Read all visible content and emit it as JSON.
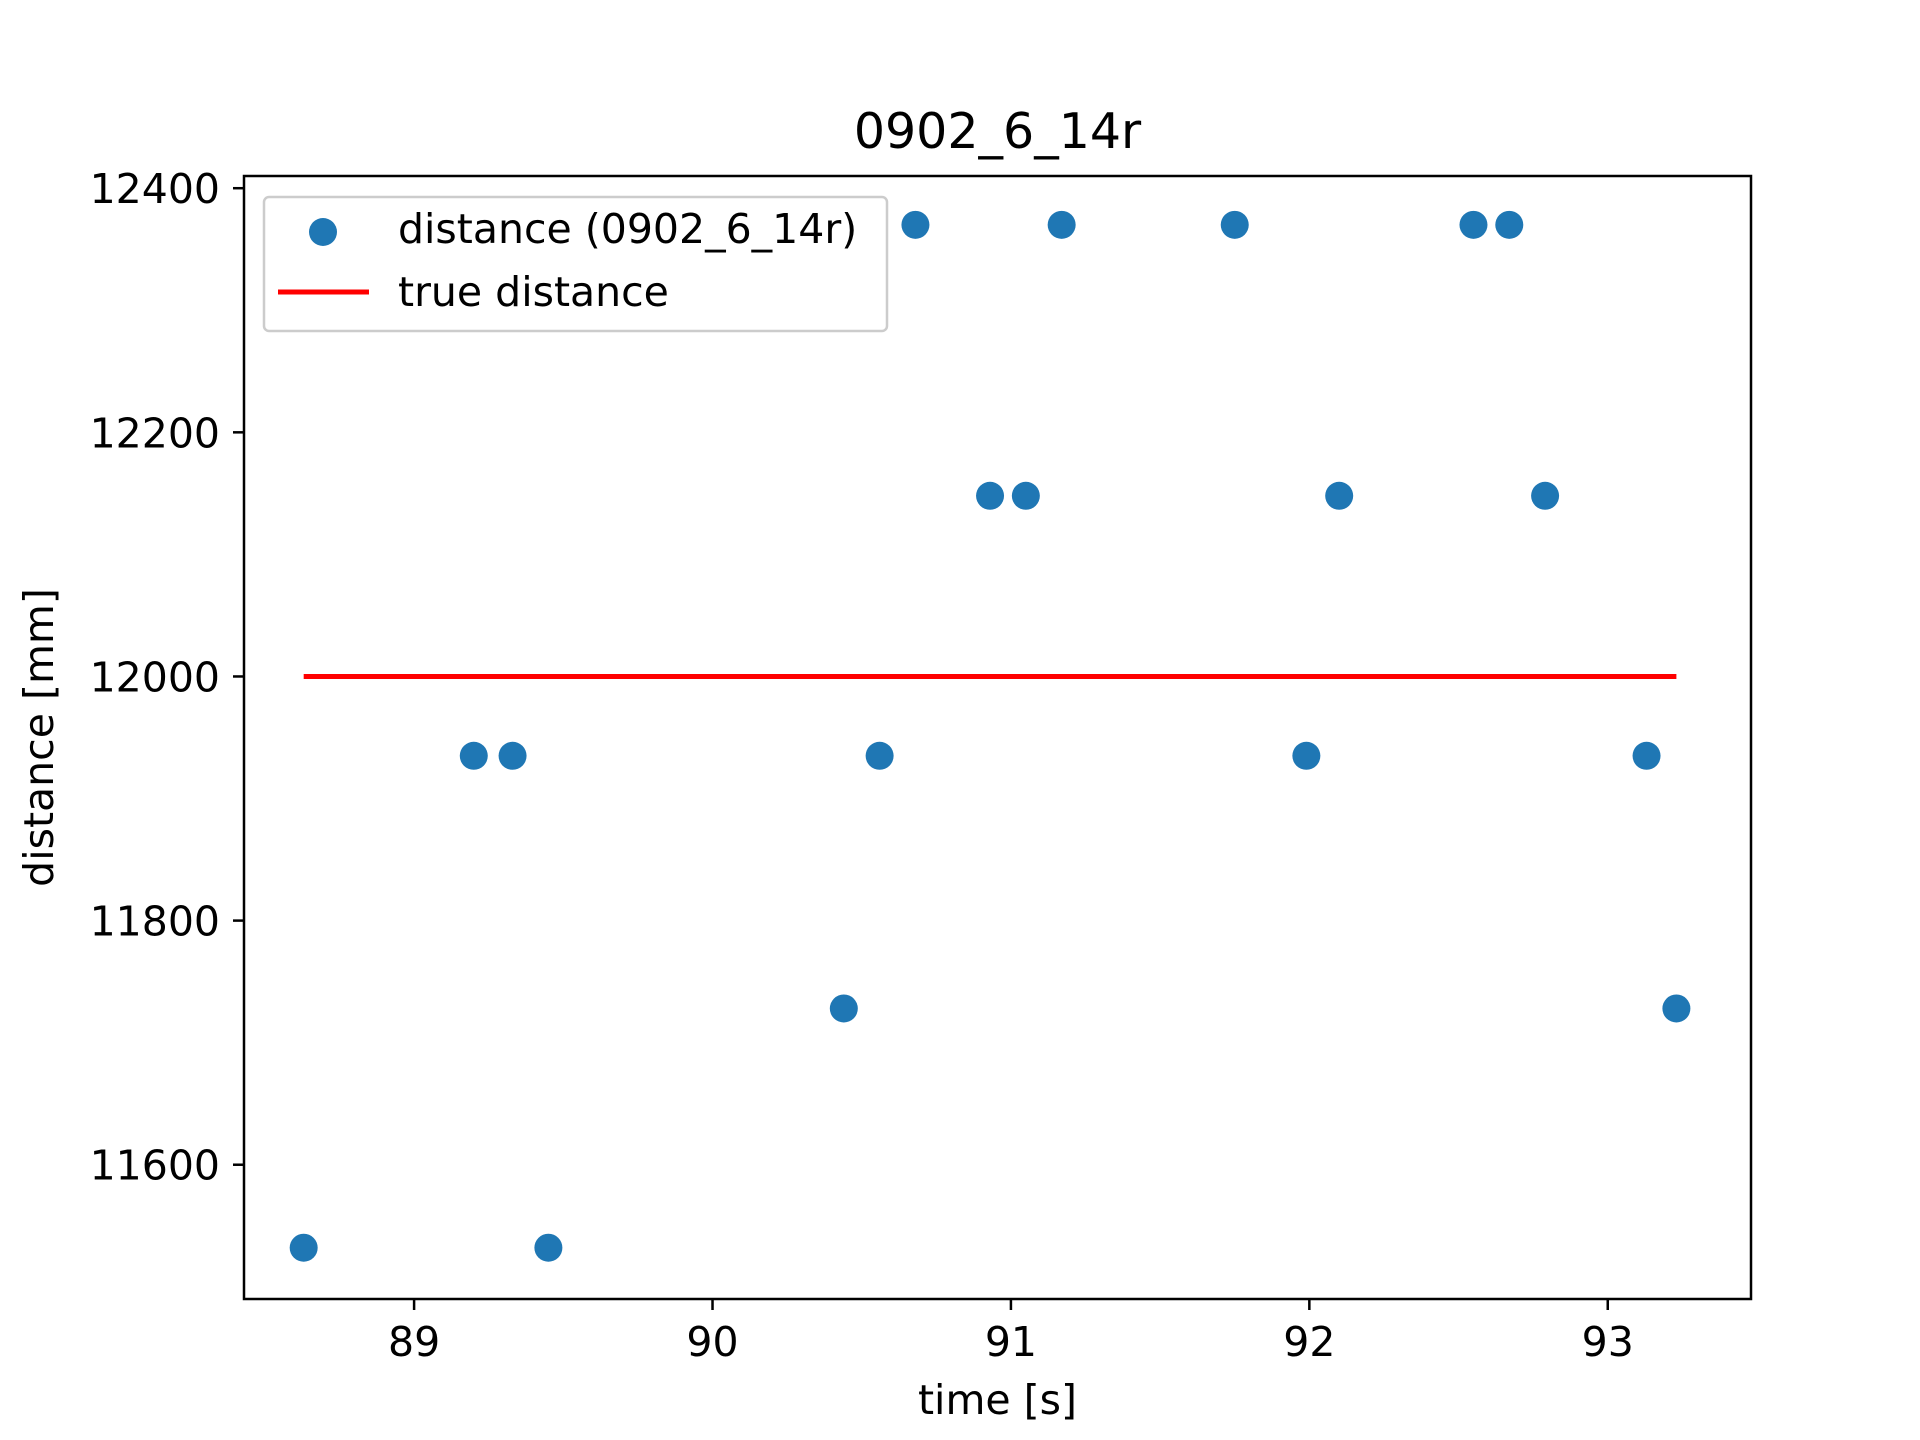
{
  "chart_data": {
    "type": "scatter",
    "title": "0902_6_14r",
    "xlabel": "time [s]",
    "ylabel": "distance [mm]",
    "xlim": [
      88.43,
      93.48
    ],
    "ylim": [
      11490,
      12410
    ],
    "xticks": [
      89,
      90,
      91,
      92,
      93
    ],
    "yticks": [
      11600,
      11800,
      12000,
      12200,
      12400
    ],
    "grid": false,
    "legend": {
      "placement": "upper-left"
    },
    "series": [
      {
        "name": "distance (0902_6_14r)",
        "kind": "scatter",
        "color": "#1f77b4",
        "points": [
          {
            "x": 88.63,
            "y": 11532
          },
          {
            "x": 89.2,
            "y": 11935
          },
          {
            "x": 89.33,
            "y": 11935
          },
          {
            "x": 89.45,
            "y": 11532
          },
          {
            "x": 90.44,
            "y": 11728
          },
          {
            "x": 90.56,
            "y": 11935
          },
          {
            "x": 90.68,
            "y": 12370
          },
          {
            "x": 90.93,
            "y": 12148
          },
          {
            "x": 91.05,
            "y": 12148
          },
          {
            "x": 91.17,
            "y": 12370
          },
          {
            "x": 91.75,
            "y": 12370
          },
          {
            "x": 91.99,
            "y": 11935
          },
          {
            "x": 92.1,
            "y": 12148
          },
          {
            "x": 92.55,
            "y": 12370
          },
          {
            "x": 92.67,
            "y": 12370
          },
          {
            "x": 92.79,
            "y": 12148
          },
          {
            "x": 93.13,
            "y": 11935
          },
          {
            "x": 93.23,
            "y": 11728
          }
        ]
      },
      {
        "name": "true distance",
        "kind": "line",
        "color": "#ff0000",
        "x": [
          88.63,
          93.23
        ],
        "y": [
          12000,
          12000
        ]
      }
    ]
  }
}
